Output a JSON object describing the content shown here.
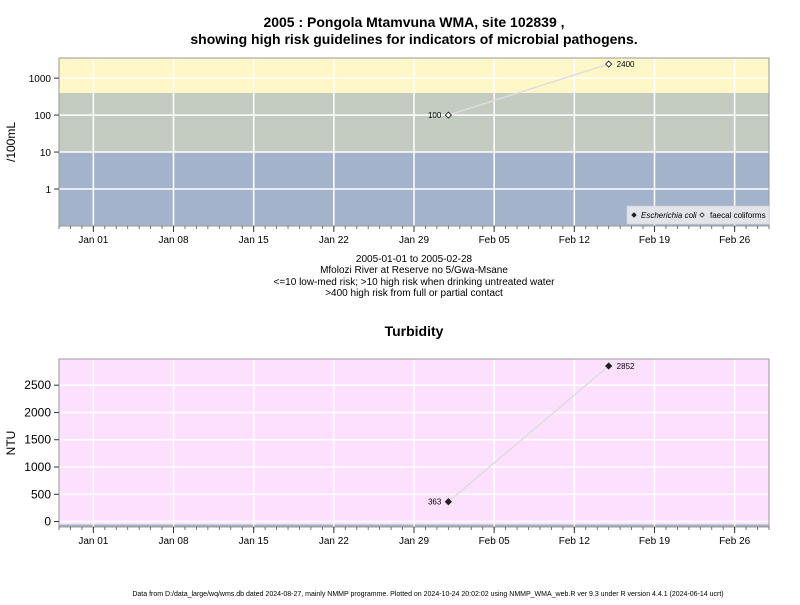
{
  "title_line1": "2005 : Pongola Mtamvuna WMA, site 102839 ,",
  "title_line2": "showing high risk guidelines for indicators of microbial pathogens.",
  "subtitle_lines": [
    "2005-01-01 to 2005-02-28",
    "Mfolozi River at Reserve no 5/Gwa-Msane",
    "<=10 low-med risk; >10 high risk when drinking untreated water",
    ">400 high risk from full or partial contact"
  ],
  "footer": "Data from D:/data_large/wq/wms.db dated 2024-08-27, mainly NMMP programme. Plotted on 2024-10-24 20:02:02 using NMMP_WMA_web.R ver 9.3 under R version 4.4.1 (2024-06-14 ucrt)",
  "colors": {
    "band_high": "#fff7c8",
    "band_mid": "#c4ccc2",
    "band_low": "#a3b3cc",
    "turbidity_bg": "#fde0fd",
    "turbidity_base": "#a3aebe",
    "gridline": "#ffffff",
    "series_line": "#dddddd",
    "frame": "#999999"
  },
  "chart_data": [
    {
      "type": "scatter",
      "title": "",
      "ylabel": "/100mL",
      "y_scale": "log",
      "x_ticks": [
        "Jan 01",
        "Jan 08",
        "Jan 15",
        "Jan 22",
        "Jan 29",
        "Feb 05",
        "Feb 12",
        "Feb 19",
        "Feb 26"
      ],
      "x_tick_dates": [
        "2005-01-01",
        "2005-01-08",
        "2005-01-15",
        "2005-01-22",
        "2005-01-29",
        "2005-02-05",
        "2005-02-12",
        "2005-02-19",
        "2005-02-26"
      ],
      "xlim": [
        "2004-12-29",
        "2005-03-01"
      ],
      "y_ticks": [
        "1",
        "10",
        "100",
        "1000"
      ],
      "y_tick_values": [
        1,
        10,
        100,
        1000
      ],
      "ylim": [
        0.1,
        3500
      ],
      "risk_bands": [
        {
          "from": 0.1,
          "to": 10,
          "level": "low-med"
        },
        {
          "from": 10,
          "to": 400,
          "level": "high (drinking)"
        },
        {
          "from": 400,
          "to": 3500,
          "level": "high (contact)"
        }
      ],
      "grid": true,
      "legend_position": "bottom-right",
      "series": [
        {
          "name": "Escherichia coli",
          "marker": "filled-diamond",
          "points": []
        },
        {
          "name": "faecal coliforms",
          "marker": "open-diamond",
          "points": [
            {
              "x": "2005-02-01",
              "y": 100,
              "label": "100"
            },
            {
              "x": "2005-02-15",
              "y": 2400,
              "label": "2400"
            }
          ]
        }
      ]
    },
    {
      "type": "scatter",
      "title": "Turbidity",
      "ylabel": "NTU",
      "y_scale": "linear",
      "x_ticks": [
        "Jan 01",
        "Jan 08",
        "Jan 15",
        "Jan 22",
        "Jan 29",
        "Feb 05",
        "Feb 12",
        "Feb 19",
        "Feb 26"
      ],
      "x_tick_dates": [
        "2005-01-01",
        "2005-01-08",
        "2005-01-15",
        "2005-01-22",
        "2005-01-29",
        "2005-02-05",
        "2005-02-12",
        "2005-02-19",
        "2005-02-26"
      ],
      "xlim": [
        "2004-12-29",
        "2005-03-01"
      ],
      "y_ticks": [
        "0",
        "500",
        "1000",
        "1500",
        "2000",
        "2500"
      ],
      "y_tick_values": [
        0,
        500,
        1000,
        1500,
        2000,
        2500
      ],
      "ylim": [
        -100,
        2980
      ],
      "grid": true,
      "series": [
        {
          "marker": "filled-diamond",
          "points": [
            {
              "x": "2005-02-01",
              "y": 363,
              "label": "363"
            },
            {
              "x": "2005-02-15",
              "y": 2852,
              "label": "2852"
            }
          ]
        }
      ]
    }
  ]
}
